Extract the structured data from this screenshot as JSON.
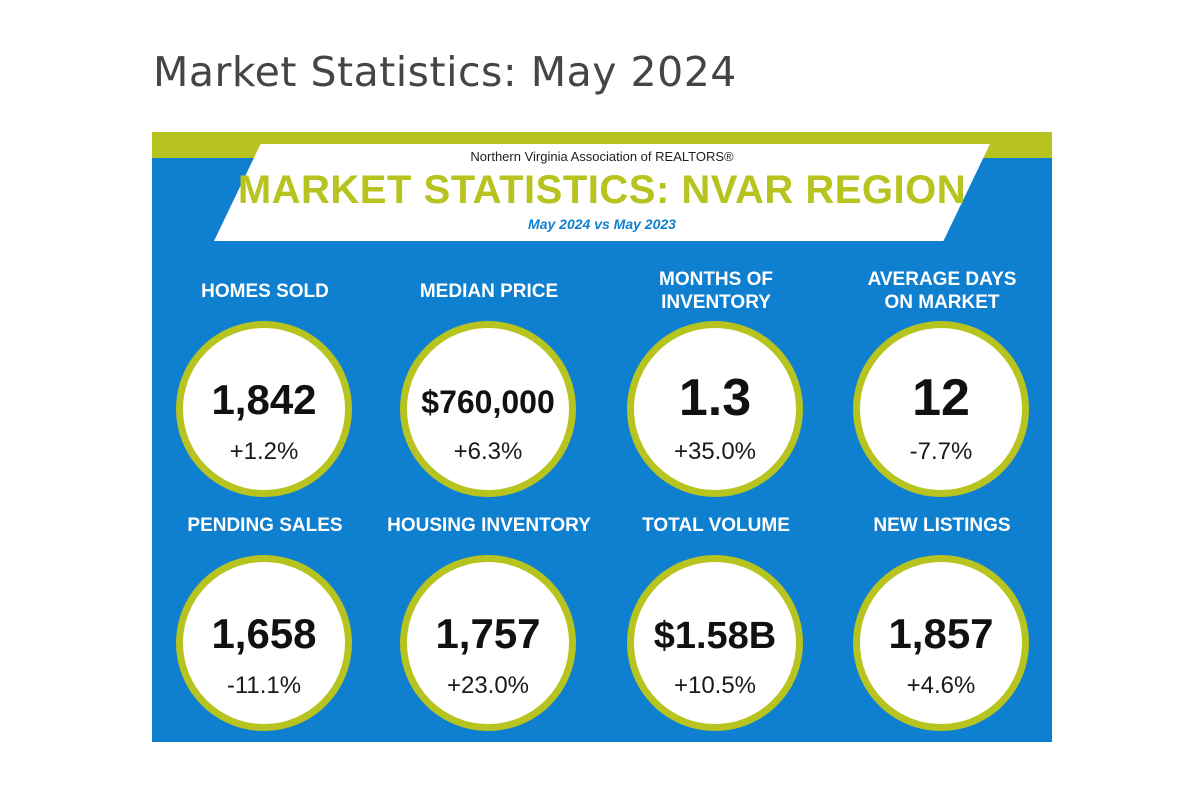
{
  "page": {
    "title": "Market Statistics: May 2024"
  },
  "infographic": {
    "org_name": "Northern Virginia Association of REALTORS®",
    "title": "MARKET STATISTICS: NVAR REGION",
    "subtitle": "May 2024 vs May 2023",
    "colors": {
      "background": "#0f7fcf",
      "accent": "#b7c31f",
      "circle_fill": "#ffffff"
    },
    "stats": [
      {
        "label": "HOMES SOLD",
        "value": "1,842",
        "change": "+1.2%"
      },
      {
        "label": "MEDIAN PRICE",
        "value": "$760,000",
        "change": "+6.3%"
      },
      {
        "label": "MONTHS OF INVENTORY",
        "value": "1.3",
        "change": "+35.0%"
      },
      {
        "label": "AVERAGE DAYS ON MARKET",
        "value": "12",
        "change": "-7.7%"
      },
      {
        "label": "PENDING SALES",
        "value": "1,658",
        "change": "-11.1%"
      },
      {
        "label": "HOUSING INVENTORY",
        "value": "1,757",
        "change": "+23.0%"
      },
      {
        "label": "TOTAL VOLUME",
        "value": "$1.58B",
        "change": "+10.5%"
      },
      {
        "label": "NEW LISTINGS",
        "value": "1,857",
        "change": "+4.6%"
      }
    ]
  }
}
